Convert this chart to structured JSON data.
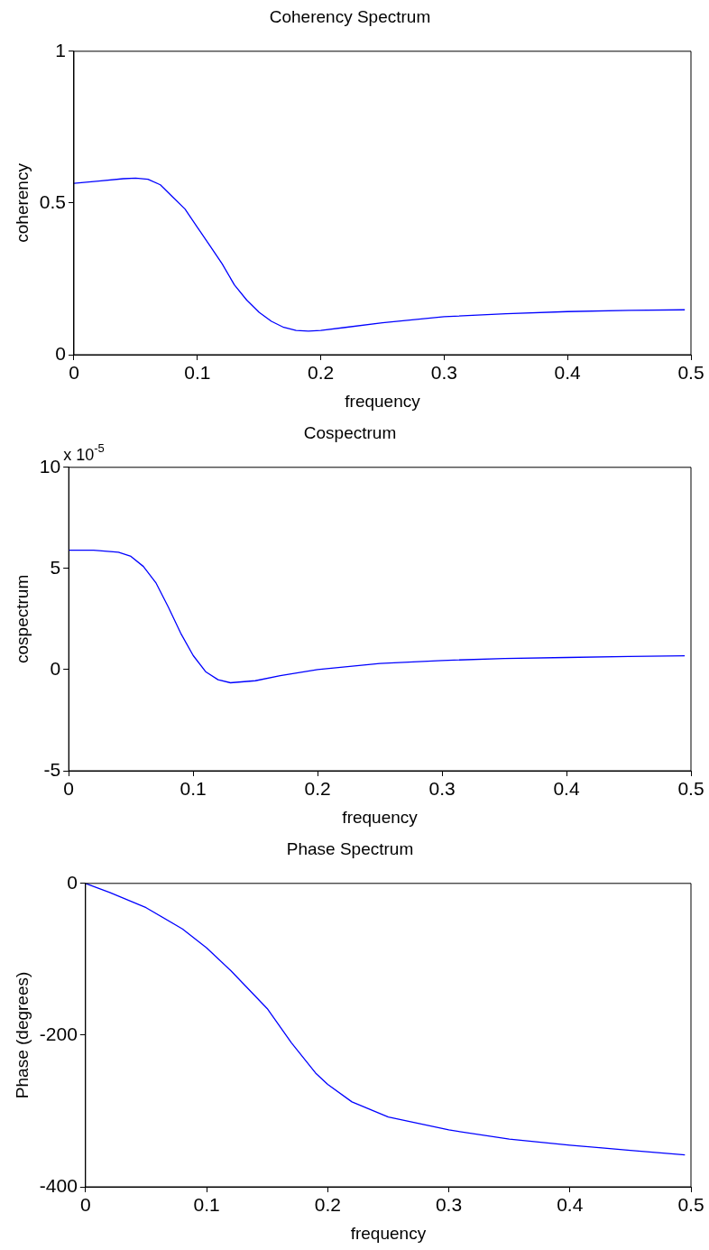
{
  "chart_data": [
    {
      "type": "line",
      "title": "Coherency Spectrum",
      "xlabel": "frequency",
      "ylabel": "coherency",
      "x": [
        0,
        0.02,
        0.04,
        0.05,
        0.06,
        0.07,
        0.08,
        0.09,
        0.1,
        0.11,
        0.12,
        0.13,
        0.14,
        0.15,
        0.16,
        0.17,
        0.18,
        0.19,
        0.2,
        0.22,
        0.25,
        0.3,
        0.35,
        0.4,
        0.45,
        0.495
      ],
      "series": [
        {
          "color": "#0000ff",
          "values": [
            0.565,
            0.572,
            0.58,
            0.582,
            0.578,
            0.56,
            0.52,
            0.48,
            0.42,
            0.36,
            0.3,
            0.23,
            0.18,
            0.14,
            0.11,
            0.09,
            0.08,
            0.078,
            0.08,
            0.09,
            0.105,
            0.125,
            0.135,
            0.142,
            0.146,
            0.148
          ]
        }
      ],
      "xlim": [
        0,
        0.5
      ],
      "ylim": [
        0,
        1
      ],
      "xticks": [
        0,
        0.1,
        0.2,
        0.3,
        0.4,
        0.5
      ],
      "yticks": [
        0,
        0.5,
        1
      ],
      "marker": "none",
      "grid": false,
      "legend": false
    },
    {
      "type": "line",
      "title": "Cospectrum",
      "xlabel": "frequency",
      "ylabel": "cospectrum",
      "annotations": [
        "x 10$^{-5}$"
      ],
      "x": [
        0,
        0.02,
        0.04,
        0.05,
        0.06,
        0.07,
        0.08,
        0.09,
        0.1,
        0.11,
        0.12,
        0.13,
        0.15,
        0.17,
        0.2,
        0.25,
        0.3,
        0.35,
        0.4,
        0.45,
        0.495
      ],
      "series": [
        {
          "color": "#0000ff",
          "values": [
            5.9,
            5.9,
            5.8,
            5.6,
            5.1,
            4.3,
            3.1,
            1.8,
            0.7,
            -0.1,
            -0.5,
            -0.65,
            -0.55,
            -0.3,
            0,
            0.3,
            0.45,
            0.55,
            0.6,
            0.65,
            0.68
          ]
        }
      ],
      "xlim": [
        0,
        0.5
      ],
      "ylim": [
        -5,
        10
      ],
      "xticks": [
        0,
        0.1,
        0.2,
        0.3,
        0.4,
        0.5
      ],
      "yticks": [
        -5,
        0,
        5,
        10
      ],
      "marker": "none",
      "grid": false,
      "legend": false
    },
    {
      "type": "line",
      "title": "Phase Spectrum",
      "xlabel": "frequency",
      "ylabel": "Phase (degrees)",
      "x": [
        0,
        0.02,
        0.05,
        0.08,
        0.1,
        0.12,
        0.15,
        0.17,
        0.19,
        0.2,
        0.22,
        0.25,
        0.3,
        0.35,
        0.4,
        0.45,
        0.495
      ],
      "series": [
        {
          "color": "#0000ff",
          "values": [
            0,
            -12,
            -32,
            -60,
            -85,
            -115,
            -165,
            -210,
            -250,
            -265,
            -288,
            -308,
            -325,
            -337,
            -345,
            -352,
            -358
          ]
        }
      ],
      "xlim": [
        0,
        0.5
      ],
      "ylim": [
        -400,
        0
      ],
      "xticks": [
        0,
        0.1,
        0.2,
        0.3,
        0.4,
        0.5
      ],
      "yticks": [
        -400,
        -200,
        0
      ],
      "marker": "none",
      "grid": false,
      "legend": false
    }
  ]
}
